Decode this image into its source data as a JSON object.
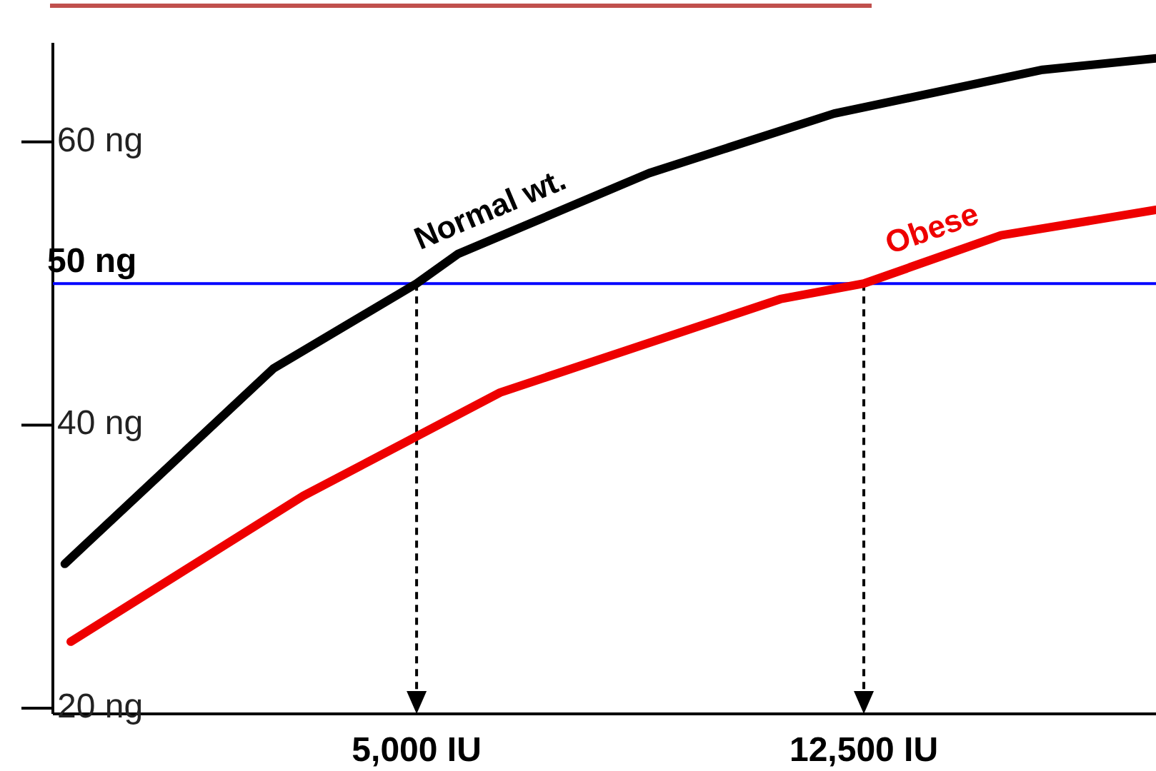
{
  "chart_data": {
    "type": "line",
    "xlim": [
      -1100,
      17400
    ],
    "ylim": [
      19.6,
      67
    ],
    "yticks": [
      {
        "value": 20,
        "label": "20 ng"
      },
      {
        "value": 40,
        "label": "40 ng"
      },
      {
        "value": 60,
        "label": "60 ng"
      }
    ],
    "grid": false,
    "legend": false,
    "marker": "none",
    "line_style": "solid",
    "series": [
      {
        "name": "Normal wt.",
        "color": "#000000",
        "x": [
          -900,
          2600,
          5000,
          5700,
          8900,
          12000,
          15500,
          17400
        ],
        "values": [
          30.2,
          44.0,
          50,
          52.1,
          57.8,
          62.0,
          65.1,
          65.9
        ]
      },
      {
        "name": "Obese",
        "color": "#ee0000",
        "x": [
          -800,
          3100,
          6400,
          11100,
          12500,
          14800,
          17400
        ],
        "values": [
          24.7,
          35.0,
          42.3,
          48.9,
          50,
          53.4,
          55.2
        ]
      }
    ],
    "ref_lines": [
      {
        "axis": "y",
        "value": 50,
        "label": "50 ng",
        "color": "#0000ff",
        "line_style": "solid"
      },
      {
        "axis": "x",
        "value": 5000,
        "label": "5,000 IU",
        "color": "#000000",
        "line_style": "dashed"
      },
      {
        "axis": "x",
        "value": 12500,
        "label": "12,500 IU",
        "color": "#000000",
        "line_style": "dashed"
      }
    ]
  }
}
